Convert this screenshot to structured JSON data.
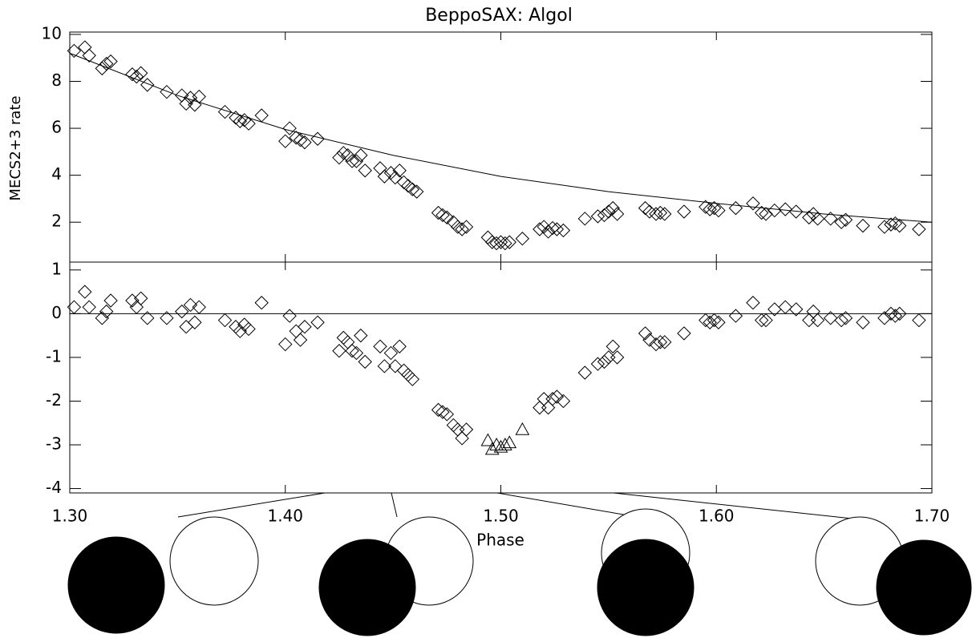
{
  "chart_data": [
    {
      "type": "scatter",
      "title": "BeppoSAX:  Algol",
      "ylabel": "MECS2+3 rate",
      "marker": "diamond",
      "x": [
        1.302,
        1.307,
        1.309,
        1.315,
        1.317,
        1.319,
        1.329,
        1.331,
        1.333,
        1.336,
        1.345,
        1.352,
        1.354,
        1.356,
        1.358,
        1.36,
        1.372,
        1.377,
        1.379,
        1.381,
        1.383,
        1.389,
        1.4,
        1.402,
        1.405,
        1.407,
        1.409,
        1.415,
        1.425,
        1.427,
        1.429,
        1.431,
        1.433,
        1.435,
        1.437,
        1.444,
        1.446,
        1.449,
        1.451,
        1.453,
        1.455,
        1.457,
        1.459,
        1.461,
        1.471,
        1.473,
        1.475,
        1.478,
        1.48,
        1.482,
        1.484,
        1.494,
        1.496,
        1.498,
        1.5,
        1.502,
        1.504,
        1.51,
        1.518,
        1.52,
        1.522,
        1.524,
        1.526,
        1.529,
        1.539,
        1.545,
        1.548,
        1.55,
        1.552,
        1.554,
        1.567,
        1.569,
        1.572,
        1.574,
        1.576,
        1.585,
        1.595,
        1.597,
        1.599,
        1.601,
        1.609,
        1.617,
        1.621,
        1.623,
        1.627,
        1.632,
        1.637,
        1.643,
        1.645,
        1.647,
        1.653,
        1.658,
        1.66,
        1.668,
        1.678,
        1.681,
        1.683,
        1.685,
        1.694
      ],
      "values": [
        9.3,
        9.45,
        9.1,
        8.55,
        8.75,
        8.85,
        8.3,
        8.2,
        8.35,
        7.85,
        7.55,
        7.4,
        7.05,
        7.3,
        7.0,
        7.35,
        6.7,
        6.45,
        6.3,
        6.35,
        6.2,
        6.55,
        5.45,
        6.0,
        5.6,
        5.5,
        5.4,
        5.55,
        4.75,
        4.95,
        4.85,
        4.6,
        4.6,
        4.85,
        4.2,
        4.3,
        3.95,
        4.1,
        3.9,
        4.2,
        3.7,
        3.55,
        3.4,
        3.3,
        2.4,
        2.3,
        2.2,
        2.0,
        1.8,
        1.7,
        1.8,
        1.35,
        1.15,
        1.1,
        1.15,
        1.1,
        1.15,
        1.3,
        1.7,
        1.8,
        1.6,
        1.75,
        1.7,
        1.65,
        2.15,
        2.25,
        2.3,
        2.45,
        2.6,
        2.35,
        2.6,
        2.45,
        2.35,
        2.4,
        2.35,
        2.45,
        2.65,
        2.55,
        2.6,
        2.5,
        2.6,
        2.8,
        2.4,
        2.35,
        2.5,
        2.55,
        2.45,
        2.2,
        2.35,
        2.15,
        2.15,
        2.0,
        2.1,
        1.85,
        1.8,
        1.9,
        1.95,
        1.85,
        1.7
      ],
      "model": {
        "x": [
          1.3,
          1.35,
          1.4,
          1.45,
          1.5,
          1.55,
          1.6,
          1.65,
          1.7
        ],
        "values": [
          9.2,
          7.4,
          5.95,
          4.85,
          3.95,
          3.3,
          2.8,
          2.35,
          2.0
        ]
      },
      "xlim": [
        1.3,
        1.7
      ],
      "xticks": [
        1.3,
        1.4,
        1.5,
        1.6,
        1.7
      ],
      "ylim": [
        0.3,
        10.1
      ],
      "yticks": [
        2,
        4,
        6,
        8,
        10
      ]
    },
    {
      "type": "scatter",
      "xlabel": "Phase",
      "hline": 0,
      "series": [
        {
          "marker": "diamond",
          "x": [
            1.302,
            1.307,
            1.309,
            1.315,
            1.317,
            1.319,
            1.329,
            1.331,
            1.333,
            1.336,
            1.345,
            1.352,
            1.354,
            1.356,
            1.358,
            1.36,
            1.372,
            1.377,
            1.379,
            1.381,
            1.383,
            1.389,
            1.4,
            1.402,
            1.405,
            1.407,
            1.409,
            1.415,
            1.425,
            1.427,
            1.429,
            1.431,
            1.433,
            1.435,
            1.437,
            1.444,
            1.446,
            1.449,
            1.451,
            1.453,
            1.455,
            1.457,
            1.459,
            1.471,
            1.473,
            1.475,
            1.478,
            1.48,
            1.482,
            1.484,
            1.518,
            1.52,
            1.522,
            1.524,
            1.526,
            1.529,
            1.539,
            1.545,
            1.548,
            1.55,
            1.552,
            1.554,
            1.567,
            1.569,
            1.572,
            1.574,
            1.576,
            1.585,
            1.595,
            1.597,
            1.599,
            1.601,
            1.609,
            1.617,
            1.621,
            1.623,
            1.627,
            1.632,
            1.637,
            1.643,
            1.645,
            1.647,
            1.653,
            1.658,
            1.66,
            1.668,
            1.678,
            1.681,
            1.683,
            1.685,
            1.694
          ],
          "values": [
            0.15,
            0.5,
            0.15,
            -0.1,
            0.05,
            0.3,
            0.3,
            0.15,
            0.35,
            -0.1,
            -0.1,
            0.05,
            -0.3,
            0.2,
            -0.2,
            0.15,
            -0.15,
            -0.3,
            -0.4,
            -0.25,
            -0.35,
            0.25,
            -0.7,
            -0.05,
            -0.4,
            -0.6,
            -0.3,
            -0.2,
            -0.85,
            -0.55,
            -0.65,
            -0.85,
            -0.9,
            -0.5,
            -1.1,
            -0.75,
            -1.2,
            -0.9,
            -1.2,
            -0.75,
            -1.3,
            -1.4,
            -1.5,
            -2.2,
            -2.25,
            -2.3,
            -2.55,
            -2.65,
            -2.85,
            -2.65,
            -2.15,
            -1.95,
            -2.15,
            -1.95,
            -1.9,
            -2.0,
            -1.35,
            -1.15,
            -1.1,
            -1.0,
            -0.75,
            -1.0,
            -0.45,
            -0.6,
            -0.7,
            -0.65,
            -0.65,
            -0.45,
            -0.15,
            -0.2,
            -0.15,
            -0.2,
            -0.05,
            0.25,
            -0.15,
            -0.15,
            0.1,
            0.15,
            0.1,
            -0.15,
            0.05,
            -0.15,
            -0.1,
            -0.15,
            -0.1,
            -0.2,
            -0.1,
            0.0,
            -0.05,
            0.0,
            -0.15
          ]
        },
        {
          "marker": "triangle",
          "x": [
            1.494,
            1.496,
            1.498,
            1.5,
            1.502,
            1.504,
            1.51
          ],
          "values": [
            -2.9,
            -3.1,
            -3.0,
            -3.05,
            -3.0,
            -2.95,
            -2.65
          ]
        }
      ],
      "xlim": [
        1.3,
        1.7
      ],
      "xticks": [
        {
          "value": 1.3,
          "label": "1.30"
        },
        {
          "value": 1.4,
          "label": "1.40"
        },
        {
          "value": 1.5,
          "label": "1.50"
        },
        {
          "value": 1.6,
          "label": "1.60"
        },
        {
          "value": 1.7,
          "label": "1.70"
        }
      ],
      "ylim": [
        -4.1,
        1.18
      ],
      "yticks": [
        1,
        0,
        -1,
        -2,
        -3,
        -4
      ]
    }
  ]
}
